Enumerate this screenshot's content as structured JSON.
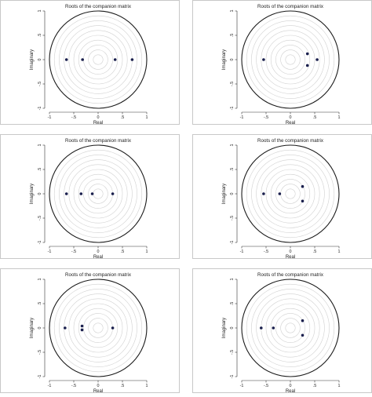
{
  "chart_data": [
    {
      "type": "scatter",
      "title": "Roots of the companion matrix",
      "xlabel": "Real",
      "ylabel": "Imaginary",
      "xlim": [
        -1,
        1
      ],
      "ylim": [
        -1,
        1
      ],
      "x_ticks": [
        "-1",
        "-.5",
        "0",
        ".5",
        "1"
      ],
      "y_ticks": [
        "-1",
        "-.5",
        "0",
        ".5",
        "1"
      ],
      "unit_circle": true,
      "points": [
        {
          "x": -0.65,
          "y": 0
        },
        {
          "x": -0.32,
          "y": 0
        },
        {
          "x": 0.35,
          "y": 0
        },
        {
          "x": 0.7,
          "y": 0
        }
      ]
    },
    {
      "type": "scatter",
      "title": "Roots of the companion matrix",
      "xlabel": "Real",
      "ylabel": "Imaginary",
      "xlim": [
        -1,
        1
      ],
      "ylim": [
        -1,
        1
      ],
      "x_ticks": [
        "-1",
        "-.5",
        "0",
        ".5",
        "1"
      ],
      "y_ticks": [
        "-1",
        "-.5",
        "0",
        ".5",
        "1"
      ],
      "unit_circle": true,
      "points": [
        {
          "x": -0.55,
          "y": 0
        },
        {
          "x": 0.35,
          "y": 0.12
        },
        {
          "x": 0.35,
          "y": -0.12
        },
        {
          "x": 0.55,
          "y": 0
        }
      ]
    },
    {
      "type": "scatter",
      "title": "Roots of the companion matrix",
      "xlabel": "Real",
      "ylabel": "Imaginary",
      "xlim": [
        -1,
        1
      ],
      "ylim": [
        -1,
        1
      ],
      "x_ticks": [
        "-1",
        "-.5",
        "0",
        ".5",
        "1"
      ],
      "y_ticks": [
        "-1",
        "-.5",
        "0",
        ".5",
        "1"
      ],
      "unit_circle": true,
      "points": [
        {
          "x": -0.65,
          "y": 0
        },
        {
          "x": -0.35,
          "y": 0
        },
        {
          "x": -0.12,
          "y": 0
        },
        {
          "x": 0.3,
          "y": 0
        }
      ]
    },
    {
      "type": "scatter",
      "title": "Roots of the companion matrix",
      "xlabel": "Real",
      "ylabel": "Imaginary",
      "xlim": [
        -1,
        1
      ],
      "ylim": [
        -1,
        1
      ],
      "x_ticks": [
        "-1",
        "-.5",
        "0",
        ".5",
        "1"
      ],
      "y_ticks": [
        "-1",
        "-.5",
        "0",
        ".5",
        "1"
      ],
      "unit_circle": true,
      "points": [
        {
          "x": -0.55,
          "y": 0
        },
        {
          "x": -0.22,
          "y": 0
        },
        {
          "x": 0.25,
          "y": 0.15
        },
        {
          "x": 0.25,
          "y": -0.15
        }
      ]
    },
    {
      "type": "scatter",
      "title": "Roots of the companion matrix",
      "xlabel": "Real",
      "ylabel": "Imaginary",
      "xlim": [
        -1,
        1
      ],
      "ylim": [
        -1,
        1
      ],
      "x_ticks": [
        "-1",
        "-.5",
        "0",
        ".5",
        "1"
      ],
      "y_ticks": [
        "-1",
        "-.5",
        "0",
        ".5",
        "1"
      ],
      "unit_circle": true,
      "points": [
        {
          "x": -0.68,
          "y": 0
        },
        {
          "x": -0.33,
          "y": 0.04
        },
        {
          "x": -0.33,
          "y": -0.04
        },
        {
          "x": 0.3,
          "y": 0
        }
      ]
    },
    {
      "type": "scatter",
      "title": "Roots of the companion matrix",
      "xlabel": "Real",
      "ylabel": "Imaginary",
      "xlim": [
        -1,
        1
      ],
      "ylim": [
        -1,
        1
      ],
      "x_ticks": [
        "-1",
        "-.5",
        "0",
        ".5",
        "1"
      ],
      "y_ticks": [
        "-1",
        "-.5",
        "0",
        ".5",
        "1"
      ],
      "unit_circle": true,
      "points": [
        {
          "x": -0.6,
          "y": 0
        },
        {
          "x": -0.35,
          "y": 0
        },
        {
          "x": 0.25,
          "y": 0.15
        },
        {
          "x": 0.25,
          "y": -0.15
        }
      ]
    }
  ],
  "colors": {
    "point": "#1a1f4d",
    "grid_circles": "#d0d0d0",
    "unit_circle": "#1a1a1a",
    "axis": "#333333"
  }
}
